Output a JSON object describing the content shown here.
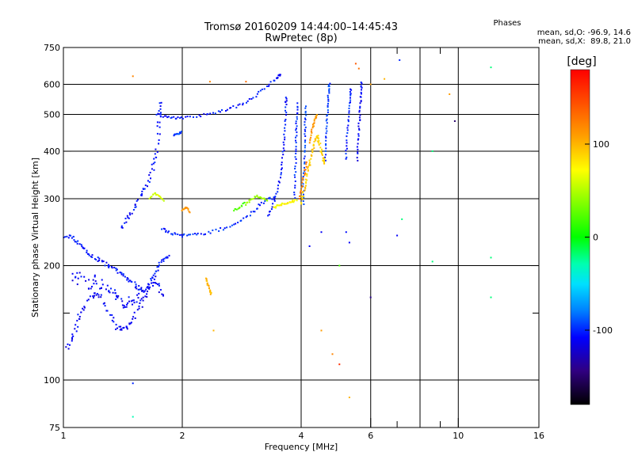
{
  "chart_data": {
    "type": "scatter",
    "title": "Tromsø 20160209 14:44:00–14:45:43",
    "subtitle": "RwPretec (8p)",
    "stats": {
      "heading": "Phases",
      "line1": "mean, sd,O: -96.9, 14.6",
      "line2": "mean, sd,X:  89.8, 21.0"
    },
    "xlabel": "Frequency [MHz]",
    "ylabel": "Stationary phase Virtual Height [km]",
    "xscale": "log",
    "yscale": "log",
    "xlim": [
      1,
      16
    ],
    "ylim": [
      75,
      750
    ],
    "xticks": [
      1,
      2,
      4,
      6,
      10,
      16
    ],
    "xtick_labels": [
      "1",
      "2",
      "4",
      "6",
      "10",
      "16"
    ],
    "xgrid": [
      2,
      4,
      6,
      8,
      10
    ],
    "xminor": [
      7,
      9
    ],
    "yticks": [
      75,
      100,
      200,
      300,
      400,
      500,
      600,
      750
    ],
    "ytick_labels": [
      "75",
      "100",
      "200",
      "300",
      "400",
      "500",
      "600",
      "750"
    ],
    "ygrid": [
      100,
      200,
      300,
      400,
      500,
      600
    ],
    "yminor": [
      150
    ],
    "grid": true,
    "colorbar": {
      "label": "[deg]",
      "range": [
        -180,
        180
      ],
      "ticks": [
        100,
        0,
        -100
      ],
      "tick_labels": [
        "100",
        "0",
        "-100"
      ]
    },
    "series": [
      {
        "phase": -105,
        "spread": 0.008,
        "points": [
          [
            1.0,
            235
          ],
          [
            1.04,
            240
          ],
          [
            1.08,
            232
          ],
          [
            1.12,
            225
          ],
          [
            1.15,
            215
          ],
          [
            1.2,
            210
          ],
          [
            1.25,
            205
          ],
          [
            1.3,
            200
          ],
          [
            1.35,
            195
          ],
          [
            1.4,
            190
          ],
          [
            1.45,
            185
          ],
          [
            1.5,
            180
          ],
          [
            1.55,
            175
          ],
          [
            1.6,
            170
          ],
          [
            1.65,
            180
          ],
          [
            1.7,
            190
          ],
          [
            1.75,
            200
          ],
          [
            1.8,
            210
          ],
          [
            1.85,
            215
          ]
        ]
      },
      {
        "phase": -110,
        "spread": 0.012,
        "points": [
          [
            1.02,
            120
          ],
          [
            1.05,
            130
          ],
          [
            1.08,
            140
          ],
          [
            1.1,
            150
          ],
          [
            1.15,
            160
          ],
          [
            1.2,
            170
          ],
          [
            1.25,
            165
          ],
          [
            1.3,
            150
          ],
          [
            1.35,
            140
          ],
          [
            1.4,
            135
          ],
          [
            1.45,
            138
          ],
          [
            1.5,
            145
          ],
          [
            1.55,
            155
          ],
          [
            1.6,
            165
          ],
          [
            1.65,
            175
          ],
          [
            1.7,
            185
          ],
          [
            1.75,
            175
          ],
          [
            1.8,
            165
          ]
        ]
      },
      {
        "phase": -110,
        "spread": 0.02,
        "points": [
          [
            1.05,
            180
          ],
          [
            1.1,
            190
          ],
          [
            1.15,
            175
          ],
          [
            1.2,
            185
          ],
          [
            1.25,
            180
          ],
          [
            1.3,
            172
          ],
          [
            1.35,
            168
          ],
          [
            1.4,
            160
          ],
          [
            1.45,
            158
          ],
          [
            1.5,
            162
          ],
          [
            1.55,
            168
          ],
          [
            1.6,
            172
          ]
        ]
      },
      {
        "phase": -105,
        "spread": 0.01,
        "points": [
          [
            1.4,
            250
          ],
          [
            1.45,
            265
          ],
          [
            1.5,
            280
          ],
          [
            1.55,
            300
          ],
          [
            1.6,
            320
          ],
          [
            1.65,
            340
          ],
          [
            1.7,
            370
          ],
          [
            1.72,
            400
          ],
          [
            1.74,
            450
          ],
          [
            1.75,
            500
          ],
          [
            1.76,
            550
          ]
        ]
      },
      {
        "phase": -100,
        "spread": 0.006,
        "points": [
          [
            1.78,
            250
          ],
          [
            1.85,
            245
          ],
          [
            1.95,
            240
          ],
          [
            2.05,
            240
          ],
          [
            2.2,
            242
          ],
          [
            2.4,
            246
          ],
          [
            2.6,
            252
          ],
          [
            2.8,
            262
          ],
          [
            3.0,
            275
          ],
          [
            3.15,
            290
          ],
          [
            3.3,
            300
          ],
          [
            3.45,
            300
          ]
        ]
      },
      {
        "phase": -105,
        "spread": 0.005,
        "points": [
          [
            1.72,
            500
          ],
          [
            1.8,
            495
          ],
          [
            1.9,
            490
          ],
          [
            2.0,
            490
          ],
          [
            2.2,
            495
          ],
          [
            2.4,
            505
          ],
          [
            2.6,
            515
          ],
          [
            2.8,
            530
          ],
          [
            3.0,
            550
          ],
          [
            3.2,
            580
          ],
          [
            3.4,
            610
          ],
          [
            3.5,
            630
          ],
          [
            3.55,
            640
          ]
        ]
      },
      {
        "phase": -105,
        "spread": 0.005,
        "points": [
          [
            3.3,
            270
          ],
          [
            3.4,
            290
          ],
          [
            3.5,
            320
          ],
          [
            3.55,
            350
          ],
          [
            3.6,
            390
          ],
          [
            3.62,
            430
          ],
          [
            3.64,
            480
          ],
          [
            3.66,
            530
          ],
          [
            3.68,
            560
          ]
        ]
      },
      {
        "phase": -100,
        "spread": 0.004,
        "points": [
          [
            3.85,
            300
          ],
          [
            3.86,
            340
          ],
          [
            3.87,
            380
          ],
          [
            3.88,
            420
          ],
          [
            3.89,
            460
          ],
          [
            3.9,
            500
          ],
          [
            3.91,
            540
          ]
        ]
      },
      {
        "phase": -95,
        "spread": 0.004,
        "points": [
          [
            4.05,
            290
          ],
          [
            4.06,
            330
          ],
          [
            4.07,
            370
          ],
          [
            4.08,
            410
          ],
          [
            4.09,
            450
          ],
          [
            4.1,
            490
          ],
          [
            4.12,
            530
          ]
        ]
      },
      {
        "phase": -95,
        "spread": 0.004,
        "points": [
          [
            4.6,
            380
          ],
          [
            4.62,
            420
          ],
          [
            4.64,
            460
          ],
          [
            4.66,
            500
          ],
          [
            4.68,
            540
          ],
          [
            4.7,
            580
          ],
          [
            4.72,
            610
          ]
        ]
      },
      {
        "phase": -100,
        "spread": 0.004,
        "points": [
          [
            5.2,
            380
          ],
          [
            5.22,
            420
          ],
          [
            5.25,
            470
          ],
          [
            5.3,
            520
          ],
          [
            5.32,
            560
          ],
          [
            5.35,
            590
          ]
        ]
      },
      {
        "phase": -110,
        "spread": 0.004,
        "points": [
          [
            5.55,
            380
          ],
          [
            5.57,
            420
          ],
          [
            5.6,
            460
          ],
          [
            5.63,
            500
          ],
          [
            5.66,
            540
          ],
          [
            5.68,
            580
          ],
          [
            5.7,
            610
          ]
        ]
      },
      {
        "phase": 90,
        "spread": 0.006,
        "points": [
          [
            4.0,
            290
          ],
          [
            4.05,
            310
          ],
          [
            4.1,
            330
          ],
          [
            4.15,
            350
          ],
          [
            4.2,
            370
          ],
          [
            4.25,
            390
          ],
          [
            4.3,
            410
          ],
          [
            4.35,
            430
          ],
          [
            4.4,
            440
          ],
          [
            4.45,
            420
          ],
          [
            4.5,
            400
          ],
          [
            4.55,
            380
          ],
          [
            4.6,
            370
          ]
        ]
      },
      {
        "phase": 110,
        "spread": 0.004,
        "points": [
          [
            4.2,
            420
          ],
          [
            4.25,
            450
          ],
          [
            4.3,
            470
          ],
          [
            4.35,
            490
          ],
          [
            4.4,
            500
          ]
        ]
      },
      {
        "phase": 125,
        "spread": 0.004,
        "points": [
          [
            3.95,
            300
          ],
          [
            4.0,
            320
          ],
          [
            4.08,
            350
          ],
          [
            4.15,
            380
          ]
        ]
      },
      {
        "phase": 75,
        "spread": 0.005,
        "points": [
          [
            3.4,
            285
          ],
          [
            3.5,
            288
          ],
          [
            3.6,
            290
          ],
          [
            3.7,
            292
          ],
          [
            3.8,
            295
          ],
          [
            3.9,
            298
          ]
        ]
      },
      {
        "phase": 45,
        "spread": 0.004,
        "points": [
          [
            2.9,
            290
          ],
          [
            3.0,
            300
          ],
          [
            3.1,
            305
          ],
          [
            3.2,
            300
          ],
          [
            3.3,
            295
          ]
        ]
      },
      {
        "phase": 20,
        "spread": 0.004,
        "points": [
          [
            2.7,
            280
          ],
          [
            2.8,
            285
          ],
          [
            2.9,
            295
          ]
        ]
      },
      {
        "phase": 100,
        "spread": 0.003,
        "points": [
          [
            2.3,
            185
          ],
          [
            2.32,
            178
          ],
          [
            2.35,
            172
          ],
          [
            2.37,
            168
          ]
        ]
      },
      {
        "phase": 110,
        "spread": 0.002,
        "points": [
          [
            2.0,
            280
          ],
          [
            2.05,
            285
          ],
          [
            2.1,
            275
          ]
        ]
      },
      {
        "phase": 60,
        "spread": 0.003,
        "points": [
          [
            1.65,
            300
          ],
          [
            1.7,
            310
          ],
          [
            1.75,
            305
          ],
          [
            1.8,
            295
          ]
        ]
      },
      {
        "phase": -95,
        "spread": 0.003,
        "points": [
          [
            1.9,
            440
          ],
          [
            1.95,
            445
          ],
          [
            2.0,
            450
          ]
        ]
      }
    ],
    "scatter": [
      [
        1.5,
        98,
        -100
      ],
      [
        1.5,
        80,
        -30
      ],
      [
        1.5,
        630,
        120
      ],
      [
        2.35,
        610,
        120
      ],
      [
        2.4,
        135,
        100
      ],
      [
        2.9,
        610,
        130
      ],
      [
        4.2,
        225,
        -110
      ],
      [
        4.5,
        245,
        -110
      ],
      [
        4.5,
        135,
        110
      ],
      [
        4.8,
        117,
        120
      ],
      [
        5.0,
        200,
        20
      ],
      [
        5.0,
        110,
        160
      ],
      [
        5.2,
        245,
        -105
      ],
      [
        5.3,
        230,
        -110
      ],
      [
        5.3,
        90,
        100
      ],
      [
        5.5,
        680,
        140
      ],
      [
        5.6,
        660,
        130
      ],
      [
        6.0,
        165,
        -140
      ],
      [
        6.0,
        600,
        110
      ],
      [
        6.5,
        620,
        100
      ],
      [
        7.0,
        240,
        -110
      ],
      [
        7.1,
        695,
        -100
      ],
      [
        7.2,
        265,
        -20
      ],
      [
        8.6,
        400,
        -20
      ],
      [
        8.6,
        205,
        -20
      ],
      [
        9.5,
        565,
        110
      ],
      [
        9.8,
        480,
        -150
      ],
      [
        12.1,
        665,
        -20
      ],
      [
        12.1,
        210,
        -20
      ],
      [
        12.1,
        165,
        -20
      ]
    ]
  }
}
